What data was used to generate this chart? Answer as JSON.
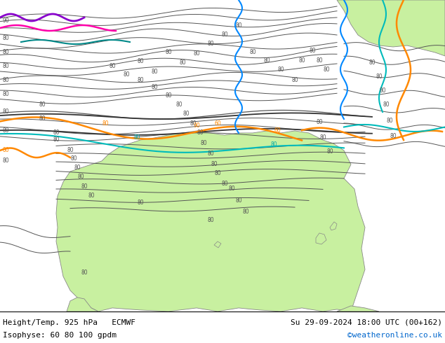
{
  "title_left_line1": "Height/Temp. 925 hPa   ECMWF",
  "title_left_line2": "Isophyse: 60 80 100 gpdm",
  "title_right_line1": "Su 29-09-2024 18:00 UTC (00+162)",
  "title_right_line2": "©weatheronline.co.uk",
  "title_right_line2_color": "#0066cc",
  "bg_gray": "#d0d0d0",
  "bg_green": "#c8f0a0",
  "bg_sea": "#e8e8e8",
  "contour_color": "#555555",
  "footer_line_color": "#000000"
}
